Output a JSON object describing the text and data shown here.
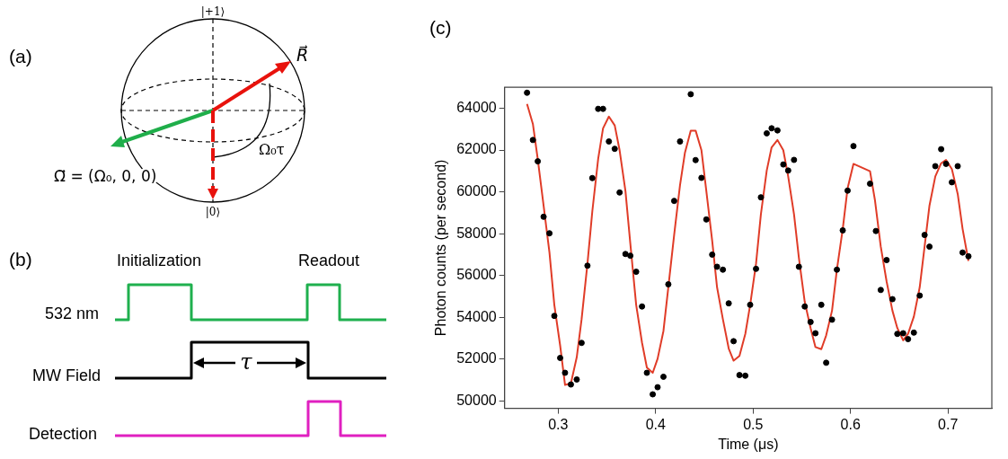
{
  "chart_data": [
    {
      "type": "other",
      "title": "(a)",
      "annotations": [
        "|+1⟩",
        "R⃗",
        "Ω⃗ = (Ω₀, 0, 0)",
        "Ω₀τ",
        "|0⟩"
      ]
    },
    {
      "type": "other",
      "title": "(b)",
      "annotations": [
        "Initialization",
        "Readout",
        "532 nm",
        "MW Field",
        "Detection",
        "τ"
      ]
    },
    {
      "type": "scatter",
      "title": "(c)",
      "xlabel": "Time (μs)",
      "ylabel": "Photon counts (per second)",
      "xlim": [
        0.245,
        0.745
      ],
      "ylim": [
        49650,
        65000
      ],
      "xticks": [
        0.3,
        0.4,
        0.5,
        0.6,
        0.7
      ],
      "yticks": [
        50000,
        52000,
        54000,
        56000,
        58000,
        60000,
        62000,
        64000
      ],
      "series": [
        {
          "type": "scatter",
          "marker": "circle",
          "color": "#000000",
          "x": [
            0.268,
            0.274,
            0.279,
            0.285,
            0.291,
            0.296,
            0.302,
            0.307,
            0.313,
            0.319,
            0.324,
            0.33,
            0.335,
            0.341,
            0.346,
            0.352,
            0.358,
            0.363,
            0.369,
            0.374,
            0.38,
            0.386,
            0.391,
            0.397,
            0.402,
            0.408,
            0.413,
            0.419,
            0.425,
            0.436,
            0.441,
            0.447,
            0.452,
            0.458,
            0.463,
            0.469,
            0.475,
            0.48,
            0.486,
            0.492,
            0.497,
            0.503,
            0.508,
            0.514,
            0.519,
            0.525,
            0.531,
            0.536,
            0.542,
            0.547,
            0.553,
            0.559,
            0.564,
            0.57,
            0.575,
            0.581,
            0.586,
            0.592,
            0.597,
            0.603,
            0.62,
            0.626,
            0.631,
            0.637,
            0.643,
            0.648,
            0.654,
            0.659,
            0.665,
            0.671,
            0.676,
            0.681,
            0.687,
            0.693,
            0.698,
            0.704,
            0.71,
            0.715,
            0.721
          ],
          "values": [
            64740,
            62480,
            61460,
            58810,
            58020,
            54070,
            52060,
            51350,
            50790,
            51030,
            52780,
            56470,
            60660,
            63970,
            63970,
            62410,
            62060,
            59970,
            57030,
            56950,
            56180,
            54520,
            51350,
            50320,
            50660,
            51160,
            55580,
            59570,
            62410,
            64670,
            61520,
            60670,
            58680,
            57000,
            56420,
            56280,
            54670,
            52860,
            51240,
            51210,
            54600,
            56320,
            59740,
            62800,
            63040,
            62940,
            61310,
            61020,
            61530,
            56420,
            54520,
            53780,
            53240,
            54600,
            51830,
            53890,
            56280,
            58160,
            60060,
            62190,
            60390,
            58130,
            55310,
            56740,
            54870,
            53210,
            53240,
            52960,
            53270,
            55040,
            57940,
            57380,
            61230,
            62040,
            61340,
            60460,
            61230,
            57100,
            56920
          ]
        },
        {
          "type": "line",
          "marker": "none",
          "line_style": "solid",
          "color": "#e03c28",
          "x": [
            0.268,
            0.274,
            0.279,
            0.285,
            0.291,
            0.296,
            0.302,
            0.307,
            0.313,
            0.319,
            0.324,
            0.33,
            0.335,
            0.341,
            0.346,
            0.352,
            0.358,
            0.363,
            0.369,
            0.374,
            0.38,
            0.386,
            0.391,
            0.397,
            0.402,
            0.408,
            0.413,
            0.419,
            0.425,
            0.43,
            0.436,
            0.441,
            0.447,
            0.452,
            0.458,
            0.463,
            0.469,
            0.475,
            0.48,
            0.486,
            0.492,
            0.497,
            0.503,
            0.508,
            0.514,
            0.519,
            0.525,
            0.531,
            0.536,
            0.542,
            0.547,
            0.553,
            0.559,
            0.564,
            0.57,
            0.575,
            0.581,
            0.586,
            0.592,
            0.597,
            0.603,
            0.62,
            0.625,
            0.631,
            0.637,
            0.643,
            0.648,
            0.654,
            0.659,
            0.665,
            0.671,
            0.676,
            0.681,
            0.687,
            0.693,
            0.698,
            0.704,
            0.71,
            0.715,
            0.721
          ],
          "values": [
            64200,
            63250,
            61570,
            59340,
            57110,
            54600,
            52650,
            50770,
            50840,
            52090,
            53910,
            56560,
            59070,
            61580,
            63040,
            63600,
            63180,
            61990,
            60040,
            57530,
            54600,
            52790,
            51600,
            51350,
            52020,
            53350,
            55440,
            57950,
            60320,
            61860,
            62930,
            62930,
            61990,
            60040,
            57670,
            55440,
            53910,
            52510,
            51930,
            52160,
            53210,
            54600,
            56560,
            58930,
            61020,
            62130,
            62480,
            61990,
            60740,
            58930,
            56840,
            54740,
            53490,
            52580,
            52480,
            53140,
            54320,
            56280,
            58230,
            60180,
            61340,
            60990,
            59620,
            57390,
            55720,
            54320,
            53490,
            52900,
            53210,
            54040,
            55440,
            57390,
            59340,
            60740,
            61370,
            61530,
            61090,
            59900,
            58230,
            56700
          ]
        }
      ]
    }
  ]
}
